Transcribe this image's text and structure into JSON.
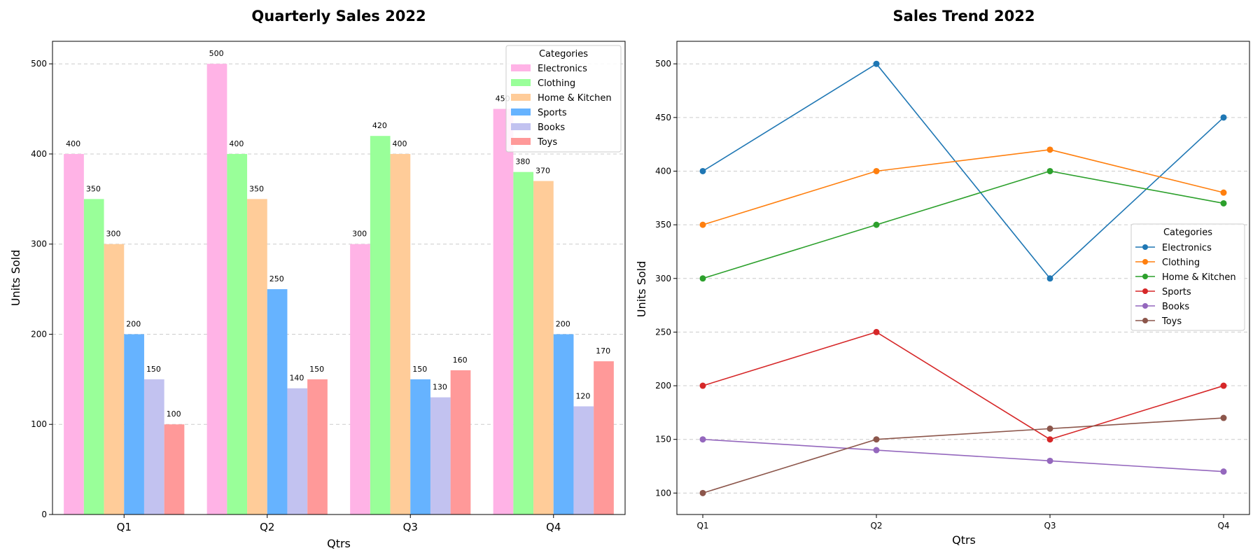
{
  "chart_data": [
    {
      "type": "bar",
      "title": "Quarterly Sales 2022",
      "xlabel": "Qtrs",
      "ylabel": "Units Sold",
      "ylim": [
        0,
        525
      ],
      "yticks": [
        0,
        100,
        200,
        300,
        400,
        500
      ],
      "categories": [
        "Q1",
        "Q2",
        "Q3",
        "Q4"
      ],
      "grid": "y-dashed",
      "legend": {
        "title": "Categories",
        "placement": "top-right"
      },
      "series": [
        {
          "name": "Electronics",
          "values": [
            400,
            500,
            300,
            450
          ],
          "color": "#ffb3e6"
        },
        {
          "name": "Clothing",
          "values": [
            350,
            400,
            420,
            380
          ],
          "color": "#99ff99"
        },
        {
          "name": "Home & Kitchen",
          "values": [
            300,
            350,
            400,
            370
          ],
          "color": "#ffcc99"
        },
        {
          "name": "Sports",
          "values": [
            200,
            250,
            150,
            200
          ],
          "color": "#66b3ff"
        },
        {
          "name": "Books",
          "values": [
            150,
            140,
            130,
            120
          ],
          "color": "#c2c2f0"
        },
        {
          "name": "Toys",
          "values": [
            100,
            150,
            160,
            170
          ],
          "color": "#ff9999"
        }
      ]
    },
    {
      "type": "line",
      "title": "Sales Trend 2022",
      "xlabel": "Qtrs",
      "ylabel": "Units Sold",
      "ylim": [
        80,
        521
      ],
      "yticks": [
        100,
        150,
        200,
        250,
        300,
        350,
        400,
        450,
        500
      ],
      "categories": [
        "Q1",
        "Q2",
        "Q3",
        "Q4"
      ],
      "grid": "y-dashed",
      "legend": {
        "title": "Categories",
        "placement": "center-right"
      },
      "series": [
        {
          "name": "Electronics",
          "values": [
            400,
            500,
            300,
            450
          ],
          "color": "#1f77b4"
        },
        {
          "name": "Clothing",
          "values": [
            350,
            400,
            420,
            380
          ],
          "color": "#ff7f0e"
        },
        {
          "name": "Home & Kitchen",
          "values": [
            300,
            350,
            400,
            370
          ],
          "color": "#2ca02c"
        },
        {
          "name": "Sports",
          "values": [
            200,
            250,
            150,
            200
          ],
          "color": "#d62728"
        },
        {
          "name": "Books",
          "values": [
            150,
            140,
            130,
            120
          ],
          "color": "#9467bd"
        },
        {
          "name": "Toys",
          "values": [
            100,
            150,
            160,
            170
          ],
          "color": "#8c564b"
        }
      ]
    }
  ]
}
